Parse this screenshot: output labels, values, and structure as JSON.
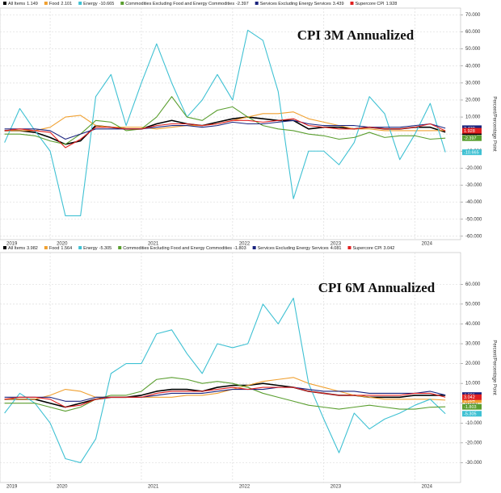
{
  "chart_data": [
    {
      "type": "line",
      "title": "CPI 3M Annualized",
      "y_label": "Percent/Percentage Point",
      "x": [
        2019.5,
        2019.667,
        2019.833,
        2020.0,
        2020.167,
        2020.333,
        2020.5,
        2020.667,
        2020.833,
        2021.0,
        2021.167,
        2021.333,
        2021.5,
        2021.667,
        2021.833,
        2022.0,
        2022.167,
        2022.333,
        2022.5,
        2022.667,
        2022.833,
        2023.0,
        2023.167,
        2023.333,
        2023.5,
        2023.667,
        2023.833,
        2024.0,
        2024.167,
        2024.333
      ],
      "xlim": [
        2019.45,
        2024.5
      ],
      "xticks": [
        {
          "value": 2019.45,
          "label": "2019"
        },
        2020,
        2021,
        2022,
        2023,
        2024
      ],
      "ylim": [
        -62,
        74
      ],
      "yticks": [
        {
          "value": 70,
          "label": "70.000"
        },
        {
          "value": 60,
          "label": "60.000"
        },
        {
          "value": 50,
          "label": "50.000"
        },
        {
          "value": 40,
          "label": "40.000"
        },
        {
          "value": 30,
          "label": "30.000"
        },
        {
          "value": 20,
          "label": "20.000"
        },
        {
          "value": 10,
          "label": "10.000"
        },
        {
          "value": 0,
          "label": "0.000"
        },
        {
          "value": -10,
          "label": "-10.000"
        },
        {
          "value": -20,
          "label": "-20.000"
        },
        {
          "value": -30,
          "label": "-30.000"
        },
        {
          "value": -40,
          "label": "-40.000"
        },
        {
          "value": -50,
          "label": "-50.000"
        },
        {
          "value": -60,
          "label": "-60.000"
        }
      ],
      "grid": true,
      "series": [
        {
          "name": "All Items",
          "color": "#000000",
          "values": [
            2,
            2,
            1,
            -2,
            -6,
            -4,
            5,
            4,
            3,
            3,
            6,
            8,
            6,
            5,
            7,
            9,
            10,
            9,
            8,
            8,
            3,
            4,
            4,
            3,
            4,
            3,
            3,
            4,
            4,
            1.149
          ]
        },
        {
          "name": "Food",
          "color": "#f0a030",
          "values": [
            2,
            2,
            2,
            4,
            10,
            11,
            5,
            4,
            4,
            4,
            3,
            4,
            5,
            5,
            6,
            8,
            10,
            12,
            12,
            13,
            9,
            7,
            5,
            3,
            3,
            2,
            2,
            2,
            2,
            2.101
          ]
        },
        {
          "name": "Energy",
          "color": "#3fc1d3",
          "values": [
            -5,
            15,
            2,
            -10,
            -48,
            -48,
            22,
            35,
            5,
            30,
            53,
            30,
            10,
            20,
            35,
            20,
            61,
            55,
            25,
            -38,
            -10,
            -10,
            -18,
            -5,
            22,
            12,
            -15,
            0,
            18,
            -10.665
          ]
        },
        {
          "name": "Commodities Excluding Food and Energy Commodities",
          "color": "#5a9e2f",
          "values": [
            0,
            0,
            -1,
            -4,
            -6,
            0,
            8,
            7,
            2,
            3,
            10,
            22,
            10,
            8,
            14,
            16,
            10,
            5,
            3,
            2,
            0,
            -1,
            -3,
            -2,
            1,
            -2,
            -1,
            -1,
            -3,
            -2.397
          ]
        },
        {
          "name": "Services Excluding Energy Services",
          "color": "#1a237e",
          "values": [
            3,
            3,
            3,
            2,
            -3,
            0,
            3,
            3,
            3,
            3,
            4,
            5,
            5,
            4,
            5,
            7,
            6,
            6,
            7,
            8,
            6,
            5,
            5,
            5,
            4,
            4,
            4,
            5,
            6,
            3.439
          ]
        },
        {
          "name": "Supercore CPI",
          "color": "#e02020",
          "values": [
            2,
            3,
            2,
            1,
            -8,
            -3,
            4,
            4,
            3,
            3,
            5,
            6,
            6,
            5,
            6,
            8,
            8,
            7,
            8,
            9,
            5,
            4,
            3,
            3,
            4,
            3,
            3,
            4,
            6,
            1.928
          ]
        }
      ]
    },
    {
      "type": "line",
      "title": "CPI 6M Annualized",
      "y_label": "Percent/Percentage Point",
      "x": [
        2019.5,
        2019.667,
        2019.833,
        2020.0,
        2020.167,
        2020.333,
        2020.5,
        2020.667,
        2020.833,
        2021.0,
        2021.167,
        2021.333,
        2021.5,
        2021.667,
        2021.833,
        2022.0,
        2022.167,
        2022.333,
        2022.5,
        2022.667,
        2022.833,
        2023.0,
        2023.167,
        2023.333,
        2023.5,
        2023.667,
        2023.833,
        2024.0,
        2024.167,
        2024.333
      ],
      "xlim": [
        2019.45,
        2024.5
      ],
      "xticks": [
        {
          "value": 2019.45,
          "label": "2019"
        },
        2020,
        2021,
        2022,
        2023,
        2024
      ],
      "ylim": [
        -40,
        76
      ],
      "yticks": [
        {
          "value": 60,
          "label": "60.000"
        },
        {
          "value": 50,
          "label": "50.000"
        },
        {
          "value": 40,
          "label": "40.000"
        },
        {
          "value": 30,
          "label": "30.000"
        },
        {
          "value": 20,
          "label": "20.000"
        },
        {
          "value": 10,
          "label": "10.000"
        },
        {
          "value": 0,
          "label": "0.000"
        },
        {
          "value": -10,
          "label": "-10.000"
        },
        {
          "value": -20,
          "label": "-20.000"
        },
        {
          "value": -30,
          "label": "-30.000"
        }
      ],
      "grid": true,
      "series": [
        {
          "name": "All Items",
          "color": "#000000",
          "values": [
            2,
            2,
            2,
            0,
            -2,
            0,
            2,
            3,
            3,
            4,
            6,
            7,
            7,
            6,
            8,
            9,
            9,
            10,
            9,
            8,
            6,
            5,
            4,
            4,
            3,
            3,
            3,
            4,
            4,
            3.982
          ]
        },
        {
          "name": "Food",
          "color": "#f0a030",
          "values": [
            2,
            2,
            2,
            4,
            7,
            6,
            3,
            3,
            3,
            3,
            3,
            3,
            4,
            4,
            5,
            7,
            9,
            11,
            12,
            13,
            10,
            8,
            6,
            4,
            3,
            2,
            2,
            2,
            2,
            1.564
          ]
        },
        {
          "name": "Energy",
          "color": "#3fc1d3",
          "values": [
            -5,
            5,
            0,
            -10,
            -28,
            -30,
            -18,
            15,
            20,
            20,
            35,
            37,
            25,
            15,
            30,
            28,
            30,
            50,
            40,
            53,
            10,
            -8,
            -25,
            -5,
            -13,
            -8,
            -5,
            -1,
            2,
            -5.305
          ]
        },
        {
          "name": "Commodities Excluding Food and Energy Commodities",
          "color": "#5a9e2f",
          "values": [
            0,
            0,
            0,
            -2,
            -4,
            -2,
            2,
            4,
            4,
            6,
            12,
            13,
            12,
            10,
            11,
            10,
            8,
            5,
            3,
            1,
            -1,
            -2,
            -3,
            -2,
            -1,
            -2,
            -3,
            -3,
            -2,
            -1.803
          ]
        },
        {
          "name": "Services Excluding Energy Services",
          "color": "#1a237e",
          "values": [
            3,
            3,
            3,
            3,
            1,
            1,
            3,
            3,
            3,
            3,
            4,
            5,
            5,
            5,
            6,
            7,
            7,
            7,
            8,
            8,
            7,
            6,
            6,
            6,
            5,
            5,
            5,
            5,
            6,
            4.081
          ]
        },
        {
          "name": "Supercore CPI",
          "color": "#e02020",
          "values": [
            2,
            3,
            3,
            2,
            -2,
            -1,
            2,
            3,
            3,
            3,
            5,
            6,
            6,
            6,
            7,
            8,
            7,
            8,
            8,
            8,
            6,
            5,
            4,
            4,
            4,
            4,
            4,
            5,
            5,
            3.042
          ]
        }
      ]
    }
  ]
}
